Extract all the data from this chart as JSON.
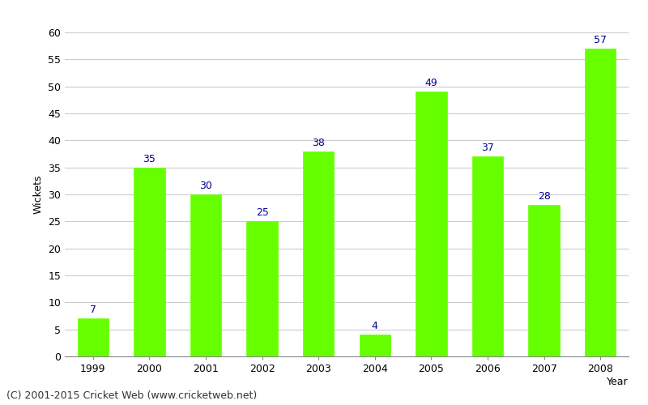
{
  "years": [
    "1999",
    "2000",
    "2001",
    "2002",
    "2003",
    "2004",
    "2005",
    "2006",
    "2007",
    "2008"
  ],
  "values": [
    7,
    35,
    30,
    25,
    38,
    4,
    49,
    37,
    28,
    57
  ],
  "bar_color": "#66FF00",
  "label_color": "#000099",
  "xlabel": "Year",
  "ylabel": "Wickets",
  "ylim": [
    0,
    60
  ],
  "yticks": [
    0,
    5,
    10,
    15,
    20,
    25,
    30,
    35,
    40,
    45,
    50,
    55,
    60
  ],
  "footnote": "(C) 2001-2015 Cricket Web (www.cricketweb.net)",
  "background_color": "#ffffff",
  "grid_color": "#cccccc",
  "label_fontsize": 9,
  "axis_fontsize": 9,
  "footnote_fontsize": 9
}
